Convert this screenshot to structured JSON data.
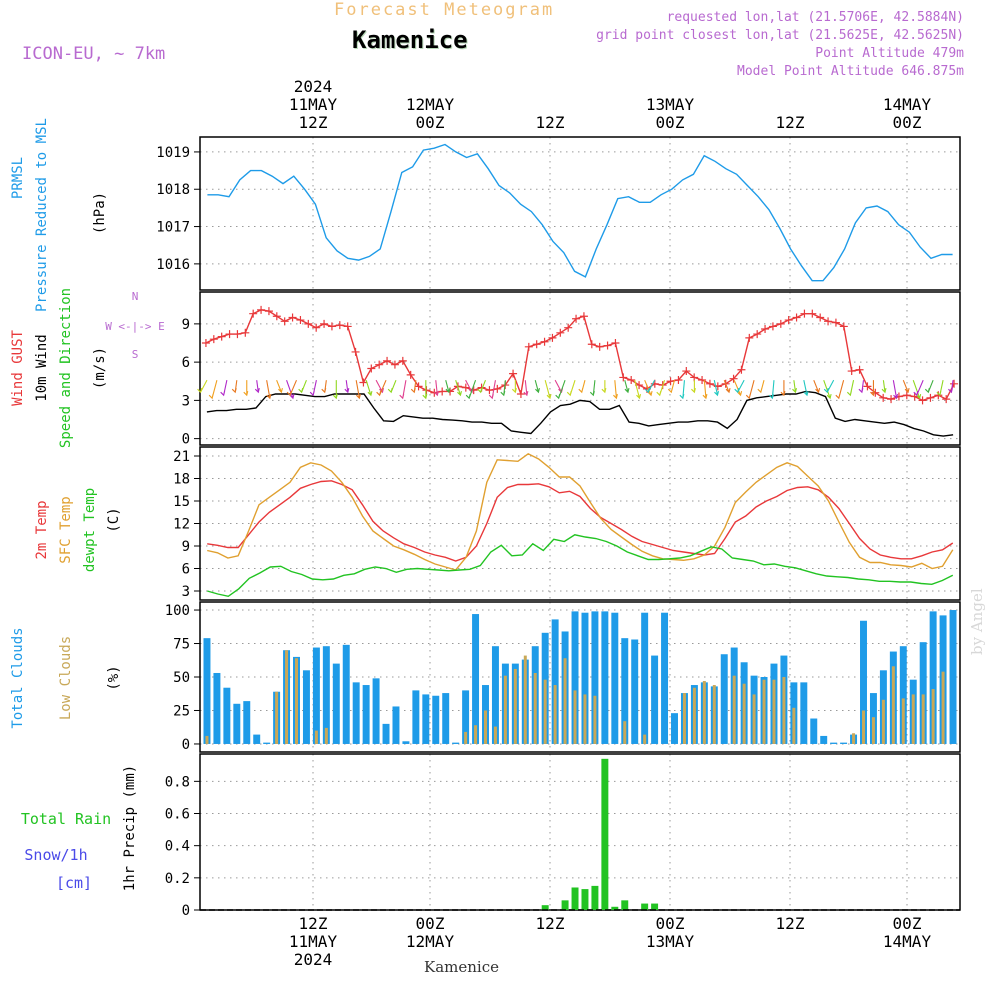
{
  "header": {
    "product": "Forecast Meteogram",
    "location": "Kamenice",
    "model": "ICON-EU, ~ 7km",
    "requested": "requested lon,lat (21.5706E, 42.5884N)",
    "gridpoint": "grid point closest lon,lat (21.5625E, 42.5625N)",
    "point_alt": "Point Altitude 479m",
    "model_alt": "Model Point Altitude 646.875m"
  },
  "footer": {
    "location": "Kamenice"
  },
  "watermark": "by Angel",
  "colors": {
    "pressure": "#1e9be8",
    "gust": "#e8383a",
    "wind10m": "#000000",
    "t2m": "#e8383a",
    "sfc": "#e0a030",
    "dewpt": "#22c322",
    "total_clouds": "#1e9be8",
    "low_clouds": "#c8a858",
    "rain": "#22c322",
    "snow": "#4a4ae8",
    "direction_legend": "#b86ad0"
  },
  "chart_data": [
    {
      "type": "line",
      "panel": "pressure",
      "ylabel": [
        "PRMSL",
        "Pressure Reduced to MSL"
      ],
      "unit": "(hPa)",
      "ylim": [
        1015.3,
        1019.4
      ],
      "yticks": [
        1016,
        1017,
        1018,
        1019
      ],
      "series": [
        {
          "name": "PRMSL",
          "values": [
            1017.85,
            1017.85,
            1017.8,
            1018.25,
            1018.5,
            1018.5,
            1018.35,
            1018.15,
            1018.35,
            1018.0,
            1017.6,
            1016.7,
            1016.35,
            1016.15,
            1016.1,
            1016.2,
            1016.4,
            1017.4,
            1018.45,
            1018.6,
            1019.05,
            1019.1,
            1019.2,
            1019.0,
            1018.85,
            1018.95,
            1018.55,
            1018.1,
            1017.9,
            1017.6,
            1017.4,
            1017.05,
            1016.6,
            1016.3,
            1015.8,
            1015.65,
            1016.4,
            1017.05,
            1017.75,
            1017.8,
            1017.65,
            1017.65,
            1017.85,
            1018.0,
            1018.25,
            1018.4,
            1018.9,
            1018.75,
            1018.55,
            1018.4,
            1018.1,
            1017.8,
            1017.45,
            1016.95,
            1016.4,
            1015.95,
            1015.55,
            1015.55,
            1015.9,
            1016.4,
            1017.1,
            1017.5,
            1017.55,
            1017.4,
            1017.05,
            1016.85,
            1016.45,
            1016.15,
            1016.25,
            1016.25
          ]
        }
      ]
    },
    {
      "type": "line",
      "panel": "wind",
      "ylabel": [
        "Wind GUST",
        "10m Wind",
        "Speed and Direction"
      ],
      "unit": "(m/s)",
      "ylim": [
        -0.5,
        11.5
      ],
      "yticks": [
        0,
        3,
        6,
        9
      ],
      "direction_legend": [
        "N",
        "W <-|-> E",
        "S"
      ],
      "series": [
        {
          "name": "Wind GUST",
          "values": [
            7.5,
            7.8,
            8.0,
            8.2,
            8.2,
            8.3,
            9.8,
            10.1,
            10.0,
            9.6,
            9.2,
            9.5,
            9.3,
            9.0,
            8.7,
            9.0,
            8.8,
            8.9,
            8.8,
            6.8,
            4.4,
            5.5,
            5.8,
            6.1,
            5.8,
            6.1,
            5.0,
            4.1,
            3.8,
            3.6,
            3.7,
            3.7,
            4.1,
            4.0,
            3.8,
            4.0,
            3.8,
            3.9,
            4.2,
            5.1,
            3.5,
            7.2,
            7.4,
            7.6,
            7.9,
            8.3,
            8.7,
            9.4,
            9.6,
            7.4,
            7.2,
            7.3,
            7.5,
            4.8,
            4.6,
            4.2,
            3.9,
            4.3,
            4.2,
            4.5,
            4.6,
            5.3,
            4.8,
            4.6,
            4.3,
            4.1,
            4.3,
            4.7,
            5.4,
            7.9,
            8.2,
            8.6,
            8.8,
            9.0,
            9.3,
            9.5,
            9.8,
            9.8,
            9.5,
            9.2,
            9.1,
            8.8,
            5.3,
            5.4,
            4.1,
            3.6,
            3.2,
            3.1,
            3.3,
            3.4,
            3.3,
            3.0,
            3.2,
            3.4,
            3.1,
            4.3
          ]
        },
        {
          "name": "10m Wind",
          "values": [
            2.1,
            2.2,
            2.2,
            2.3,
            2.3,
            2.4,
            3.3,
            3.5,
            3.5,
            3.5,
            3.4,
            3.3,
            3.3,
            3.5,
            3.5,
            3.5,
            3.5,
            2.4,
            1.4,
            1.35,
            1.8,
            1.7,
            1.6,
            1.6,
            1.5,
            1.45,
            1.4,
            1.3,
            1.3,
            1.2,
            1.2,
            0.6,
            0.5,
            0.4,
            1.2,
            2.1,
            2.6,
            2.7,
            3.0,
            2.9,
            2.3,
            2.3,
            2.6,
            1.3,
            1.2,
            1.0,
            1.1,
            1.2,
            1.3,
            1.3,
            1.4,
            1.4,
            1.3,
            0.8,
            1.5,
            3.0,
            3.2,
            3.3,
            3.4,
            3.5,
            3.5,
            3.7,
            3.6,
            3.3,
            1.6,
            1.35,
            1.5,
            1.4,
            1.3,
            1.2,
            1.3,
            1.1,
            0.8,
            0.6,
            0.3,
            0.2,
            0.3
          ]
        }
      ]
    },
    {
      "type": "line",
      "panel": "temperature",
      "ylabel": [
        "2m Temp",
        "SFC Temp",
        "dewpt Temp"
      ],
      "unit": "(C)",
      "ylim": [
        1.8,
        22.2
      ],
      "yticks": [
        3,
        6,
        9,
        12,
        15,
        18,
        21
      ],
      "series": [
        {
          "name": "2m Temp",
          "values": [
            9.3,
            9.1,
            8.8,
            8.8,
            10.5,
            12.2,
            13.5,
            14.5,
            15.5,
            16.7,
            17.2,
            17.6,
            17.7,
            17.2,
            16.5,
            14.5,
            12.3,
            11.0,
            10.1,
            9.3,
            8.8,
            8.2,
            7.8,
            7.5,
            7.0,
            7.5,
            9.0,
            12.0,
            15.5,
            16.8,
            17.2,
            17.2,
            17.3,
            16.9,
            16.1,
            16.3,
            15.6,
            14.0,
            12.8,
            12.0,
            11.2,
            10.3,
            9.6,
            9.2,
            8.8,
            8.4,
            8.2,
            8.0,
            7.8,
            8.0,
            10.0,
            12.2,
            13.0,
            14.2,
            15.0,
            15.6,
            16.4,
            16.8,
            16.9,
            16.5,
            15.5,
            14.0,
            12.0,
            10.0,
            8.6,
            7.8,
            7.5,
            7.3,
            7.3,
            7.7,
            8.2,
            8.5,
            9.4
          ]
        },
        {
          "name": "SFC Temp",
          "values": [
            8.4,
            8.1,
            7.4,
            7.7,
            11.0,
            14.5,
            15.5,
            16.5,
            17.5,
            19.5,
            20.1,
            19.8,
            19.0,
            17.5,
            15.5,
            13.0,
            11.0,
            10.0,
            9.0,
            8.5,
            7.9,
            7.2,
            6.6,
            6.2,
            5.8,
            7.5,
            11.0,
            17.5,
            20.5,
            20.4,
            20.3,
            21.3,
            20.6,
            19.5,
            18.2,
            18.2,
            17.0,
            14.8,
            12.7,
            11.2,
            10.2,
            9.2,
            8.3,
            7.7,
            7.3,
            7.2,
            7.1,
            7.3,
            7.8,
            9.0,
            11.5,
            14.8,
            16.2,
            17.5,
            18.5,
            19.5,
            20.1,
            19.6,
            18.3,
            17.0,
            15.0,
            12.2,
            9.5,
            7.5,
            6.8,
            6.8,
            6.5,
            6.4,
            6.2,
            6.7,
            6.0,
            6.3,
            8.5
          ]
        },
        {
          "name": "dewpt Temp",
          "values": [
            3.0,
            2.6,
            2.3,
            3.3,
            4.7,
            5.4,
            6.2,
            6.3,
            5.6,
            5.2,
            4.6,
            4.5,
            4.6,
            5.1,
            5.3,
            5.9,
            6.2,
            6.0,
            5.5,
            5.9,
            6.0,
            5.9,
            5.8,
            5.7,
            5.8,
            5.9,
            6.4,
            8.2,
            9.1,
            7.7,
            7.8,
            9.3,
            8.4,
            9.9,
            9.6,
            10.5,
            10.2,
            10.0,
            9.6,
            9.0,
            8.2,
            7.7,
            7.2,
            7.2,
            7.3,
            7.4,
            7.7,
            8.3,
            8.9,
            8.6,
            7.4,
            7.2,
            7.0,
            6.5,
            6.6,
            6.3,
            6.1,
            5.7,
            5.3,
            5.0,
            4.9,
            4.8,
            4.6,
            4.5,
            4.3,
            4.3,
            4.2,
            4.2,
            4.0,
            3.9,
            4.4,
            5.1
          ]
        }
      ]
    },
    {
      "type": "bar",
      "panel": "clouds",
      "ylabel": [
        "Total Clouds",
        "Low Clouds"
      ],
      "unit": "(%)",
      "ylim": [
        -6,
        106
      ],
      "yticks": [
        0,
        25,
        50,
        75,
        100
      ],
      "series": [
        {
          "name": "Total Clouds",
          "values": [
            79,
            53,
            42,
            30,
            32,
            7,
            1,
            39,
            70,
            65,
            55,
            72,
            73,
            60,
            74,
            46,
            44,
            49,
            15,
            28,
            2,
            40,
            37,
            36,
            38,
            1,
            40,
            97,
            44,
            73,
            60,
            60,
            63,
            73,
            83,
            93,
            84,
            99,
            98,
            99,
            99,
            98,
            79,
            78,
            98,
            66,
            98,
            23,
            38,
            44,
            46,
            43,
            67,
            72,
            61,
            51,
            50,
            60,
            66,
            46,
            46,
            19,
            6,
            1,
            1,
            7,
            92,
            38,
            55,
            69,
            73,
            48,
            76,
            99,
            96,
            100
          ]
        },
        {
          "name": "Low Clouds",
          "values": [
            6,
            0,
            0,
            0,
            0,
            0,
            0,
            39,
            70,
            64,
            0,
            10,
            12,
            0,
            0,
            0,
            0,
            0,
            0,
            0,
            0,
            0,
            0,
            0,
            0,
            0,
            9,
            14,
            25,
            13,
            51,
            56,
            66,
            53,
            48,
            44,
            64,
            40,
            37,
            36,
            0,
            0,
            17,
            0,
            7,
            0,
            0,
            0,
            38,
            42,
            47,
            44,
            0,
            51,
            45,
            37,
            48,
            48,
            50,
            27,
            0,
            0,
            0,
            0,
            0,
            8,
            25,
            20,
            33,
            58,
            34,
            37,
            37,
            41,
            54
          ]
        }
      ]
    },
    {
      "type": "bar",
      "panel": "precipitation",
      "ylabel": [
        "1hr Precip (mm)"
      ],
      "legend": [
        "Total Rain",
        "Snow/1h",
        "[cm]"
      ],
      "ylim": [
        0,
        0.97
      ],
      "yticks": [
        0,
        0.2,
        0.4,
        0.6,
        0.8
      ],
      "series": [
        {
          "name": "Total Rain",
          "values": [
            0,
            0,
            0,
            0,
            0,
            0,
            0,
            0,
            0,
            0,
            0,
            0,
            0,
            0,
            0,
            0,
            0,
            0,
            0,
            0,
            0,
            0,
            0,
            0,
            0,
            0,
            0,
            0,
            0,
            0,
            0,
            0,
            0,
            0,
            0.03,
            0,
            0.06,
            0.14,
            0.13,
            0.15,
            0.94,
            0.02,
            0.06,
            0,
            0.04,
            0.04,
            0,
            0,
            0,
            0,
            0,
            0,
            0,
            0,
            0,
            0,
            0,
            0,
            0,
            0,
            0,
            0,
            0,
            0,
            0,
            0,
            0,
            0,
            0,
            0,
            0,
            0,
            0,
            0,
            0,
            0
          ]
        }
      ]
    }
  ],
  "time_axis": {
    "top_labels": [
      {
        "lines": [
          "2024",
          "11MAY",
          "12Z"
        ]
      },
      {
        "lines": [
          "12MAY",
          "00Z"
        ]
      },
      {
        "lines": [
          "12Z"
        ]
      },
      {
        "lines": [
          "13MAY",
          "00Z"
        ]
      },
      {
        "lines": [
          "12Z"
        ]
      },
      {
        "lines": [
          "14MAY",
          "00Z"
        ]
      }
    ],
    "bottom_labels": [
      {
        "lines": [
          "12Z",
          "11MAY",
          "2024"
        ]
      },
      {
        "lines": [
          "00Z",
          "12MAY"
        ]
      },
      {
        "lines": [
          "12Z"
        ]
      },
      {
        "lines": [
          "00Z",
          "13MAY"
        ]
      },
      {
        "lines": [
          "12Z"
        ]
      },
      {
        "lines": [
          "00Z",
          "14MAY"
        ]
      }
    ]
  }
}
